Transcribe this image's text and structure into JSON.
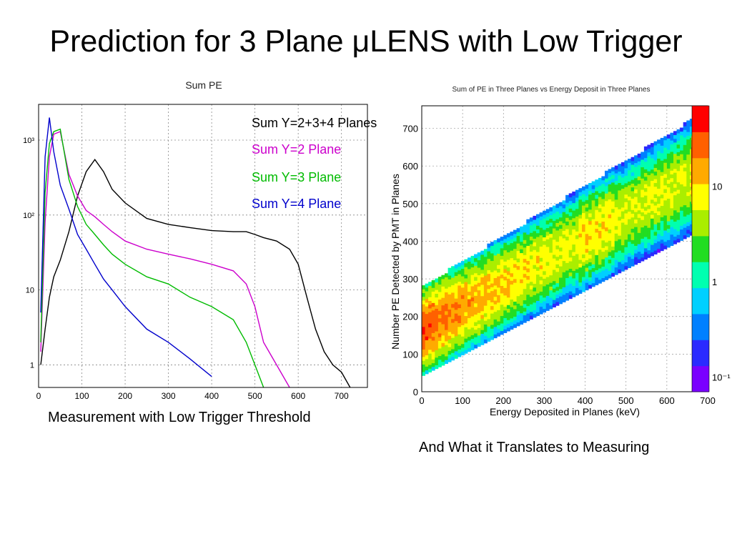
{
  "slide": {
    "title": "Prediction for 3 Plane μLENS with Low Trigger",
    "left_caption": "Measurement with Low Trigger Threshold",
    "right_caption": "And What it Translates to Measuring"
  },
  "chart_data": [
    {
      "type": "line",
      "title": "Sum PE",
      "xlabel": "",
      "ylabel": "",
      "log_y": true,
      "grid": true,
      "legend_placement": "top-right",
      "xlim": [
        0,
        760
      ],
      "ylim": [
        0.5,
        3000
      ],
      "x_ticks": [
        "0",
        "100",
        "200",
        "300",
        "400",
        "500",
        "600",
        "700"
      ],
      "y_ticks": [
        "1",
        "10",
        "10²",
        "10³"
      ],
      "x": [
        5,
        15,
        25,
        35,
        50,
        70,
        90,
        110,
        130,
        150,
        170,
        200,
        250,
        300,
        350,
        400,
        450,
        480,
        500,
        520,
        550,
        580,
        600,
        620,
        640,
        660,
        680,
        700,
        720
      ],
      "series": [
        {
          "name": "Sum Y=2+3+4 Planes",
          "color": "#000000",
          "values": [
            1,
            3,
            8,
            15,
            25,
            60,
            180,
            380,
            550,
            380,
            220,
            145,
            90,
            75,
            68,
            62,
            60,
            60,
            55,
            50,
            45,
            35,
            22,
            8,
            3,
            1.5,
            1,
            0.8,
            0.5
          ]
        },
        {
          "name": "Sum Y=2 Plane",
          "color": "#cc00cc",
          "values": [
            1.5,
            80,
            600,
            1200,
            1300,
            350,
            180,
            115,
            95,
            75,
            60,
            45,
            35,
            30,
            26,
            22,
            18,
            12,
            6,
            2,
            1,
            0.5,
            0,
            0,
            0,
            0,
            0,
            0,
            0
          ]
        },
        {
          "name": "Sum Y=3 Plane",
          "color": "#00bb00",
          "values": [
            2,
            200,
            900,
            1300,
            1400,
            300,
            130,
            75,
            55,
            40,
            30,
            22,
            15,
            12,
            8,
            6,
            4,
            2,
            1,
            0.5,
            0,
            0,
            0,
            0,
            0,
            0,
            0,
            0,
            0
          ]
        },
        {
          "name": "Sum Y=4 Plane",
          "color": "#0000cc",
          "values": [
            5,
            600,
            2000,
            700,
            250,
            120,
            55,
            35,
            22,
            14,
            10,
            6,
            3,
            2,
            1.2,
            0.7,
            0,
            0,
            0,
            0,
            0,
            0,
            0,
            0,
            0,
            0,
            0,
            0,
            0
          ]
        }
      ]
    },
    {
      "type": "heatmap",
      "title": "Sum of PE in Three Planes vs Energy Deposit in Three Planes",
      "xlabel": "Energy Deposited in Planes (keV)",
      "ylabel": "Number PE Detected by PMT in Planes",
      "grid": true,
      "xlim": [
        0,
        700
      ],
      "ylim": [
        0,
        760
      ],
      "x_ticks": [
        "0",
        "100",
        "200",
        "300",
        "400",
        "500",
        "600",
        "700"
      ],
      "y_ticks": [
        "0",
        "100",
        "200",
        "300",
        "400",
        "500",
        "600",
        "700"
      ],
      "color_scale": {
        "log": true,
        "min": 0.07,
        "max": 70,
        "tick_labels": [
          "10⁻¹",
          "1",
          "10"
        ],
        "colors": [
          "#7a00ff",
          "#2a2aff",
          "#0080ff",
          "#00d0ff",
          "#00ffb0",
          "#22dd22",
          "#aaee00",
          "#ffff00",
          "#ffaa00",
          "#ff6000",
          "#ff0000"
        ]
      },
      "band": {
        "x_max": 660,
        "pe_intercept": 160,
        "pe_slope": 0.62,
        "spread": 45,
        "peak_x": 20
      },
      "edge_column": {
        "x": 660,
        "pe_range": [
          500,
          680
        ]
      }
    }
  ]
}
